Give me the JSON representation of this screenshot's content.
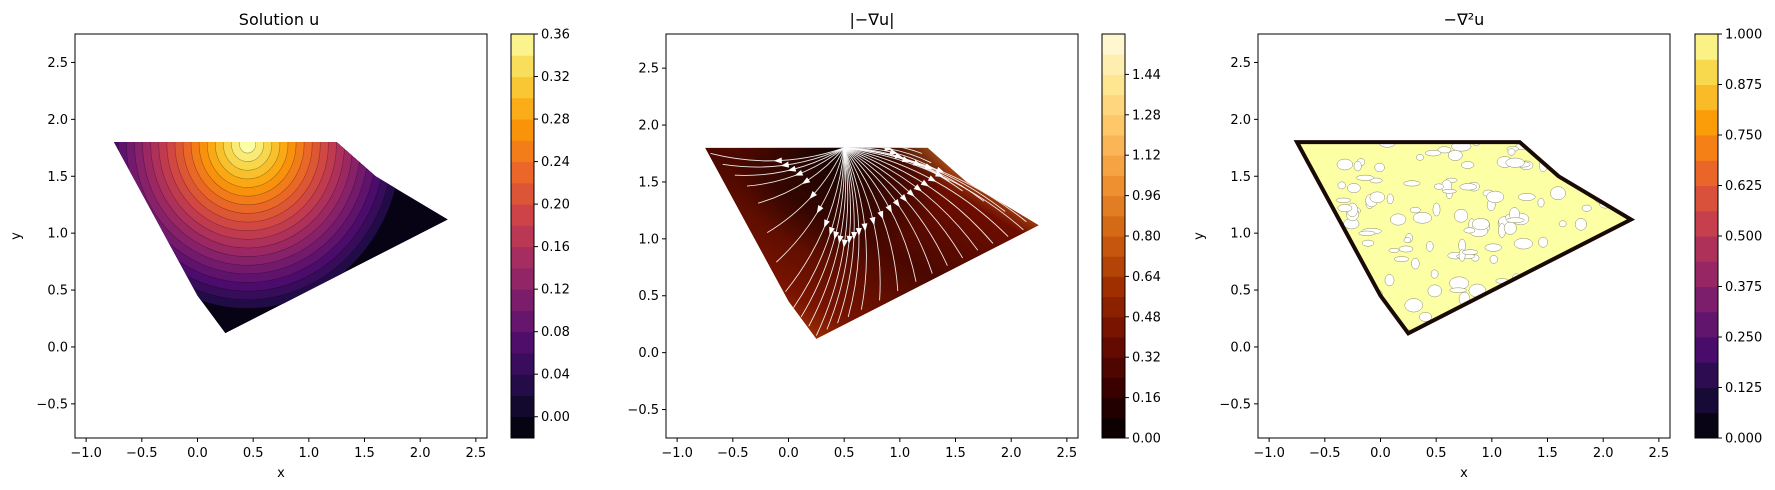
{
  "chart_data": [
    {
      "type": "contour",
      "title": "Solution u",
      "xlabel": "x",
      "ylabel": "y",
      "xlim": [
        -1.1,
        2.6
      ],
      "ylim": [
        -0.8,
        2.75
      ],
      "xticks": [
        -1.0,
        -0.5,
        0.0,
        0.5,
        1.0,
        1.5,
        2.0,
        2.5
      ],
      "yticks": [
        -0.5,
        0.0,
        0.5,
        1.0,
        1.5,
        2.0,
        2.5
      ],
      "xtick_labels": [
        "−1.0",
        "−0.5",
        "0.0",
        "0.5",
        "1.0",
        "1.5",
        "2.0",
        "2.5"
      ],
      "ytick_labels": [
        "−0.5",
        "0.0",
        "0.5",
        "1.0",
        "1.5",
        "2.0",
        "2.5"
      ],
      "colormap": "inferno",
      "colorbar": {
        "range": [
          -0.02,
          0.36
        ],
        "ticks": [
          0.0,
          0.04,
          0.08,
          0.12,
          0.16,
          0.2,
          0.24,
          0.28,
          0.32,
          0.36
        ],
        "tick_labels": [
          "0.00",
          "0.04",
          "0.08",
          "0.12",
          "0.16",
          "0.20",
          "0.24",
          "0.28",
          "0.32",
          "0.36"
        ]
      },
      "domain_polygon": [
        [
          -0.75,
          1.8
        ],
        [
          1.25,
          1.8
        ],
        [
          1.6,
          1.5
        ],
        [
          2.25,
          1.12
        ],
        [
          0.25,
          0.12
        ],
        [
          0.0,
          0.45
        ]
      ],
      "peak": {
        "x": 0.45,
        "y": 1.78,
        "value": 0.36
      }
    },
    {
      "type": "streamplot",
      "title": "|−∇u|",
      "xlabel": "",
      "ylabel": "",
      "xlim": [
        -1.1,
        2.6
      ],
      "ylim": [
        -0.75,
        2.8
      ],
      "xticks": [
        -1.0,
        -0.5,
        0.0,
        0.5,
        1.0,
        1.5,
        2.0,
        2.5
      ],
      "yticks": [
        -0.5,
        0.0,
        0.5,
        1.0,
        1.5,
        2.0,
        2.5
      ],
      "xtick_labels": [
        "−1.0",
        "−0.5",
        "0.0",
        "0.5",
        "1.0",
        "1.5",
        "2.0",
        "2.5"
      ],
      "ytick_labels": [
        "−0.5",
        "0.0",
        "0.5",
        "1.0",
        "1.5",
        "2.0",
        "2.5"
      ],
      "colormap": "afmhot",
      "colorbar": {
        "range": [
          0.0,
          1.6
        ],
        "ticks": [
          0.0,
          0.16,
          0.32,
          0.48,
          0.64,
          0.8,
          0.96,
          1.12,
          1.28,
          1.44
        ],
        "tick_labels": [
          "0.00",
          "0.16",
          "0.32",
          "0.48",
          "0.64",
          "0.80",
          "0.96",
          "1.12",
          "1.28",
          "1.44"
        ]
      },
      "domain_polygon": [
        [
          -0.75,
          1.8
        ],
        [
          1.25,
          1.8
        ],
        [
          1.6,
          1.5
        ],
        [
          2.25,
          1.12
        ],
        [
          0.25,
          0.12
        ],
        [
          0.0,
          0.45
        ]
      ],
      "source_point": {
        "x": 0.5,
        "y": 1.8
      }
    },
    {
      "type": "contour",
      "title": "−∇²u",
      "xlabel": "x",
      "ylabel": "y",
      "xlim": [
        -1.1,
        2.6
      ],
      "ylim": [
        -0.8,
        2.75
      ],
      "xticks": [
        -1.0,
        -0.5,
        0.0,
        0.5,
        1.0,
        1.5,
        2.0,
        2.5
      ],
      "yticks": [
        -0.5,
        0.0,
        0.5,
        1.0,
        1.5,
        2.0,
        2.5
      ],
      "xtick_labels": [
        "−1.0",
        "−0.5",
        "0.0",
        "0.5",
        "1.0",
        "1.5",
        "2.0",
        "2.5"
      ],
      "ytick_labels": [
        "−0.5",
        "0.0",
        "0.5",
        "1.0",
        "1.5",
        "2.0",
        "2.5"
      ],
      "colormap": "inferno",
      "colorbar": {
        "range": [
          0.0,
          1.0
        ],
        "ticks": [
          0.0,
          0.125,
          0.25,
          0.375,
          0.5,
          0.625,
          0.75,
          0.875,
          1.0
        ],
        "tick_labels": [
          "0.000",
          "0.125",
          "0.250",
          "0.375",
          "0.500",
          "0.625",
          "0.750",
          "0.875",
          "1.000"
        ]
      },
      "domain_polygon": [
        [
          -0.75,
          1.8
        ],
        [
          1.25,
          1.8
        ],
        [
          1.6,
          1.5
        ],
        [
          2.25,
          1.12
        ],
        [
          0.25,
          0.12
        ],
        [
          0.0,
          0.45
        ]
      ],
      "interior_value": 1.0
    }
  ]
}
